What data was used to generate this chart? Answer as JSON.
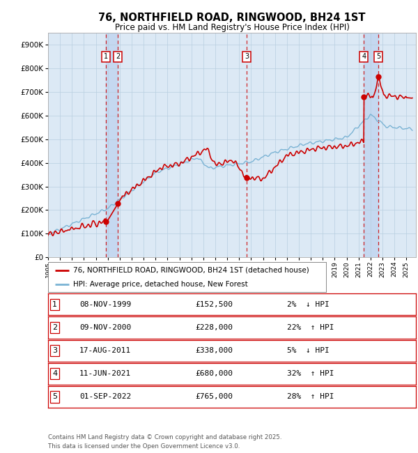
{
  "title": "76, NORTHFIELD ROAD, RINGWOOD, BH24 1ST",
  "subtitle": "Price paid vs. HM Land Registry's House Price Index (HPI)",
  "legend_line1": "76, NORTHFIELD ROAD, RINGWOOD, BH24 1ST (detached house)",
  "legend_line2": "HPI: Average price, detached house, New Forest",
  "footer": "Contains HM Land Registry data © Crown copyright and database right 2025.\nThis data is licensed under the Open Government Licence v3.0.",
  "transactions": [
    {
      "id": 1,
      "date": "08-NOV-1999",
      "year": 1999.85,
      "price": 152500,
      "pct": "2%",
      "dir": "↓"
    },
    {
      "id": 2,
      "date": "09-NOV-2000",
      "year": 2000.85,
      "price": 228000,
      "pct": "22%",
      "dir": "↑"
    },
    {
      "id": 3,
      "date": "17-AUG-2011",
      "year": 2011.62,
      "price": 338000,
      "pct": "5%",
      "dir": "↓"
    },
    {
      "id": 4,
      "date": "11-JUN-2021",
      "year": 2021.44,
      "price": 680000,
      "pct": "32%",
      "dir": "↑"
    },
    {
      "id": 5,
      "date": "01-SEP-2022",
      "year": 2022.66,
      "price": 765000,
      "pct": "28%",
      "dir": "↑"
    }
  ],
  "hpi_color": "#7ab3d4",
  "price_color": "#cc0000",
  "dot_color": "#cc0000",
  "background_color": "#dce9f5",
  "plot_bg": "#ffffff",
  "vband_color": "#c5d8f0",
  "grid_color": "#b8cfe0",
  "ylim": [
    0,
    950000
  ],
  "xlim_start": 1995.0,
  "xlim_end": 2025.8,
  "yticks": [
    0,
    100000,
    200000,
    300000,
    400000,
    500000,
    600000,
    700000,
    800000,
    900000
  ],
  "ytick_labels": [
    "£0",
    "£100K",
    "£200K",
    "£300K",
    "£400K",
    "£500K",
    "£600K",
    "£700K",
    "£800K",
    "£900K"
  ],
  "xtick_years": [
    1995,
    1996,
    1997,
    1998,
    1999,
    2000,
    2001,
    2002,
    2003,
    2004,
    2005,
    2006,
    2007,
    2008,
    2009,
    2010,
    2011,
    2012,
    2013,
    2014,
    2015,
    2016,
    2017,
    2018,
    2019,
    2020,
    2021,
    2022,
    2023,
    2024,
    2025
  ]
}
